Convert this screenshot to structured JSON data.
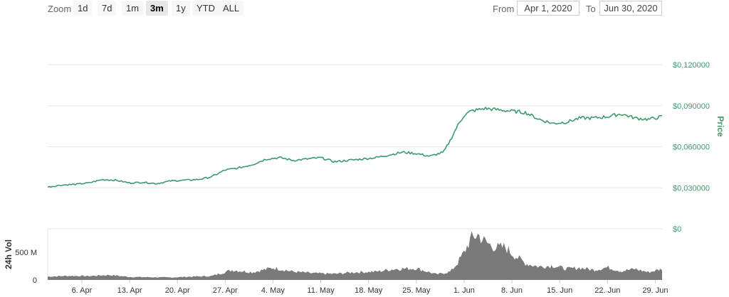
{
  "toolbar": {
    "zoom_label": "Zoom",
    "zoom_buttons": [
      "1d",
      "7d",
      "1m",
      "3m",
      "1y",
      "YTD",
      "ALL"
    ],
    "active_zoom": "3m",
    "from_label": "From",
    "from_value": "Apr 1, 2020",
    "to_label": "To",
    "to_value": "Jun 30, 2020"
  },
  "colors": {
    "price_line": "#3f9a6b",
    "volume_fill": "#7a7a7a",
    "axis_text": "#3f9a6b"
  },
  "chart_data": {
    "type": "line",
    "price_axis_title": "Price",
    "volume_axis_title": "24h Vol",
    "price_ticks": [
      "$0,120000",
      "$0,090000",
      "$0,060000",
      "$0,030000",
      "$0"
    ],
    "price_ylim": [
      0,
      0.12
    ],
    "volume_ticks": [
      "500 M",
      "0"
    ],
    "volume_ylim": [
      0,
      850
    ],
    "x_ticks": [
      "6. Apr",
      "13. Apr",
      "20. Apr",
      "27. Apr",
      "4. May",
      "11. May",
      "18. May",
      "25. May",
      "1. Jun",
      "8. Jun",
      "15. Jun",
      "22. Jun",
      "29. Jun"
    ],
    "x_range": [
      "2020-04-01",
      "2020-06-30"
    ],
    "series": [
      {
        "kind": "price",
        "x": [
          "2020-04-01",
          "2020-04-03",
          "2020-04-05",
          "2020-04-07",
          "2020-04-09",
          "2020-04-11",
          "2020-04-13",
          "2020-04-15",
          "2020-04-17",
          "2020-04-19",
          "2020-04-21",
          "2020-04-23",
          "2020-04-25",
          "2020-04-27",
          "2020-04-29",
          "2020-05-01",
          "2020-05-03",
          "2020-05-05",
          "2020-05-07",
          "2020-05-09",
          "2020-05-11",
          "2020-05-13",
          "2020-05-15",
          "2020-05-17",
          "2020-05-19",
          "2020-05-21",
          "2020-05-23",
          "2020-05-25",
          "2020-05-27",
          "2020-05-29",
          "2020-05-30",
          "2020-05-31",
          "2020-06-01",
          "2020-06-02",
          "2020-06-04",
          "2020-06-06",
          "2020-06-08",
          "2020-06-10",
          "2020-06-12",
          "2020-06-14",
          "2020-06-16",
          "2020-06-18",
          "2020-06-20",
          "2020-06-22",
          "2020-06-24",
          "2020-06-26",
          "2020-06-28",
          "2020-06-30"
        ],
        "y": [
          0.0305,
          0.032,
          0.0325,
          0.0335,
          0.036,
          0.0355,
          0.0335,
          0.034,
          0.033,
          0.035,
          0.0355,
          0.036,
          0.038,
          0.043,
          0.0445,
          0.047,
          0.051,
          0.052,
          0.05,
          0.051,
          0.052,
          0.049,
          0.05,
          0.051,
          0.052,
          0.054,
          0.056,
          0.055,
          0.053,
          0.056,
          0.065,
          0.075,
          0.083,
          0.086,
          0.088,
          0.087,
          0.086,
          0.085,
          0.08,
          0.077,
          0.078,
          0.081,
          0.081,
          0.082,
          0.084,
          0.081,
          0.08,
          0.082
        ]
      },
      {
        "kind": "volume",
        "x": [
          "2020-04-01",
          "2020-04-04",
          "2020-04-07",
          "2020-04-10",
          "2020-04-13",
          "2020-04-16",
          "2020-04-19",
          "2020-04-22",
          "2020-04-25",
          "2020-04-28",
          "2020-05-01",
          "2020-05-04",
          "2020-05-07",
          "2020-05-10",
          "2020-05-13",
          "2020-05-16",
          "2020-05-19",
          "2020-05-22",
          "2020-05-25",
          "2020-05-28",
          "2020-05-30",
          "2020-05-31",
          "2020-06-01",
          "2020-06-02",
          "2020-06-03",
          "2020-06-04",
          "2020-06-05",
          "2020-06-06",
          "2020-06-07",
          "2020-06-08",
          "2020-06-10",
          "2020-06-12",
          "2020-06-14",
          "2020-06-16",
          "2020-06-18",
          "2020-06-20",
          "2020-06-22",
          "2020-06-24",
          "2020-06-26",
          "2020-06-28",
          "2020-06-30"
        ],
        "y": [
          60,
          75,
          70,
          90,
          55,
          50,
          45,
          60,
          70,
          180,
          140,
          220,
          150,
          120,
          110,
          140,
          150,
          200,
          210,
          100,
          150,
          300,
          500,
          750,
          820,
          700,
          620,
          580,
          600,
          480,
          300,
          240,
          260,
          200,
          220,
          180,
          230,
          160,
          200,
          140,
          200
        ]
      }
    ]
  }
}
